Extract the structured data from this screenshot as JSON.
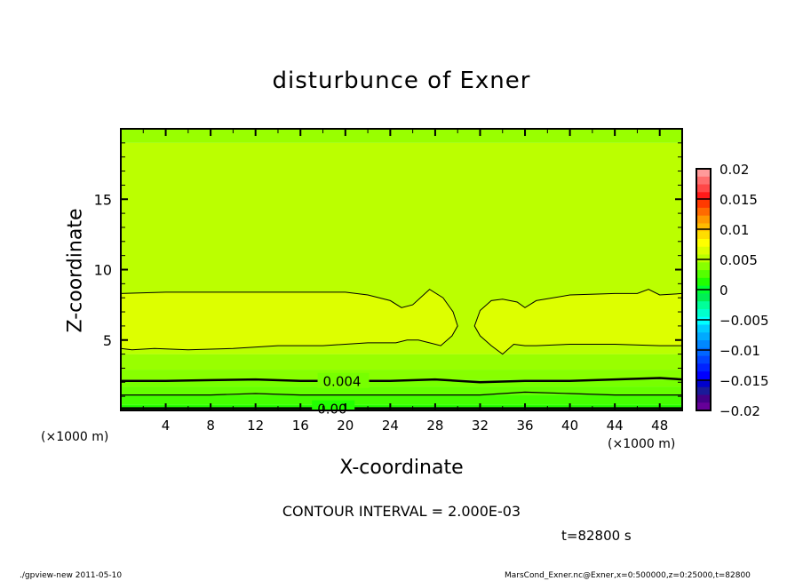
{
  "chart_data": {
    "type": "heatmap",
    "title": "disturbunce of Exner",
    "xlabel": "X-coordinate",
    "ylabel": "Z-coordinate",
    "x_unit_label": "(×1000 m)",
    "xlim": [
      0,
      50
    ],
    "ylim": [
      0,
      20
    ],
    "x_ticks": [
      4,
      8,
      12,
      16,
      20,
      24,
      28,
      32,
      36,
      40,
      44,
      48
    ],
    "y_ticks": [
      5,
      10,
      15
    ],
    "colorbar": {
      "range": [
        -0.02,
        0.02
      ],
      "tick_labels": [
        "0.02",
        "0.015",
        "0.01",
        "0.005",
        "0",
        "-0.005",
        "-0.01",
        "-0.015",
        "-0.02"
      ],
      "colors": [
        "#ff9a9a",
        "#ff6e6e",
        "#ff4848",
        "#ff1a1a",
        "#ff3a00",
        "#ff6a00",
        "#ff9900",
        "#ffbb00",
        "#ffdd00",
        "#ffff00",
        "#ddff00",
        "#bbff00",
        "#88ff00",
        "#55ff00",
        "#22ff00",
        "#00ff33",
        "#00ee55",
        "#00ff99",
        "#00ffcc",
        "#00ffff"
      ]
    },
    "colorbar_lower": [
      "#00ccff",
      "#00aaff",
      "#0088ff",
      "#0066ff",
      "#0044ff",
      "#0022ff",
      "#0000ff",
      "#0000cc",
      "#1a1a99",
      "#440088",
      "#660099"
    ],
    "fill_bands": [
      {
        "z_from": 0,
        "z_to": 0.4,
        "color": "#22ff00"
      },
      {
        "z_from": 0.4,
        "z_to": 1.1,
        "color": "#44ff00"
      },
      {
        "z_from": 1.1,
        "z_to": 1.7,
        "color": "#66ff00"
      },
      {
        "z_from": 1.7,
        "z_to": 2.2,
        "color": "#77ff00"
      },
      {
        "z_from": 2.2,
        "z_to": 2.9,
        "color": "#88ff00"
      },
      {
        "z_from": 2.9,
        "z_to": 4.0,
        "color": "#99ff00"
      },
      {
        "z_from": 4.0,
        "z_to": 19.0,
        "color": "#bbff00"
      },
      {
        "z_from": 19.0,
        "z_to": 20,
        "color": "#99ff00"
      }
    ],
    "contours": [
      {
        "level": "0.006",
        "fill": "#ddff00",
        "closed": true,
        "x": [
          0,
          4,
          8,
          12,
          16,
          20,
          22,
          24,
          25,
          26,
          27.5,
          28.7,
          29.6,
          30,
          29.5,
          28.5,
          27.5,
          26.5,
          25.5,
          24.5,
          22,
          18,
          14,
          10,
          6,
          3,
          1,
          0
        ],
        "z": [
          8.3,
          8.4,
          8.4,
          8.4,
          8.4,
          8.4,
          8.2,
          7.8,
          7.3,
          7.5,
          8.6,
          8.0,
          7.0,
          6.0,
          5.3,
          4.6,
          4.8,
          5.0,
          5.0,
          4.8,
          4.8,
          4.6,
          4.6,
          4.4,
          4.3,
          4.4,
          4.3,
          4.4
        ]
      },
      {
        "level": "0.006",
        "fill": "#ddff00",
        "closed": true,
        "x": [
          31.5,
          32,
          33,
          34,
          35.3,
          36,
          37,
          40,
          44,
          46,
          47,
          48,
          50,
          50,
          48,
          44,
          40,
          37,
          36,
          35,
          34,
          33,
          32
        ],
        "z": [
          6.0,
          7.1,
          7.8,
          7.9,
          7.7,
          7.3,
          7.8,
          8.2,
          8.3,
          8.3,
          8.6,
          8.2,
          8.3,
          4.6,
          4.6,
          4.7,
          4.7,
          4.6,
          4.6,
          4.7,
          4.0,
          4.6,
          5.3
        ]
      },
      {
        "level": "0.004",
        "label": "0.004",
        "label_x": 18,
        "closed": false,
        "x": [
          0,
          4,
          8,
          12,
          16,
          20,
          24,
          28,
          32,
          36,
          40,
          44,
          48,
          50
        ],
        "z": [
          2.1,
          2.1,
          2.15,
          2.2,
          2.1,
          2.1,
          2.1,
          2.2,
          2.0,
          2.1,
          2.1,
          2.2,
          2.3,
          2.2
        ]
      },
      {
        "level": "0.002",
        "closed": false,
        "x": [
          0,
          4,
          8,
          12,
          16,
          20,
          24,
          28,
          32,
          36,
          40,
          44,
          48,
          50
        ],
        "z": [
          1.1,
          1.1,
          1.1,
          1.2,
          1.1,
          1.1,
          1.1,
          1.1,
          1.1,
          1.3,
          1.2,
          1.1,
          1.1,
          1.1
        ]
      },
      {
        "level": "0.00",
        "label": "0.00",
        "label_x": 17.5,
        "closed": false,
        "x": [
          0,
          10,
          20,
          30,
          40,
          50
        ],
        "z": [
          0.15,
          0.15,
          0.15,
          0.15,
          0.15,
          0.15
        ]
      }
    ]
  },
  "annotations": {
    "contour_interval": "CONTOUR INTERVAL = 2.000E-03",
    "time": "t=82800 s",
    "footer_left": "./gpview-new   2011-05-10",
    "footer_right": "MarsCond_Exner.nc@Exner,x=0:500000,z=0:25000,t=82800"
  }
}
